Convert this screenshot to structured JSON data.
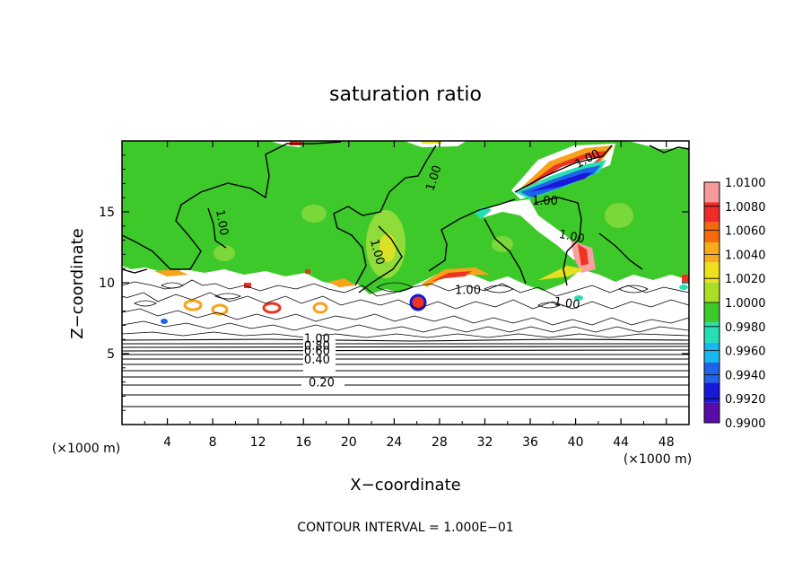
{
  "chart_data": {
    "type": "heatmap",
    "title": "saturation ratio",
    "xlabel": "X−coordinate",
    "ylabel": "Z−coordinate",
    "x_unit": "(×1000 m)",
    "y_unit": "(×1000 m)",
    "xlim": [
      0,
      50
    ],
    "ylim": [
      0,
      20
    ],
    "x_ticks": [
      4,
      8,
      12,
      16,
      20,
      24,
      28,
      32,
      36,
      40,
      44,
      48
    ],
    "y_ticks": [
      5,
      10,
      15
    ],
    "contour_interval_text": "CONTOUR INTERVAL = 1.000E−01",
    "contour_labels": [
      {
        "text": "1.00",
        "x": 8.5,
        "z": 14.2,
        "rot": 80
      },
      {
        "text": "1.00",
        "x": 27.8,
        "z": 17.3,
        "rot": -72
      },
      {
        "text": "1.00",
        "x": 22.2,
        "z": 12.1,
        "rot": 75
      },
      {
        "text": "1.00",
        "x": 41.2,
        "z": 18.5,
        "rot": -28
      },
      {
        "text": "1.00",
        "x": 37.3,
        "z": 15.5,
        "rot": 0
      },
      {
        "text": "1.00",
        "x": 39.6,
        "z": 13.0,
        "rot": 12
      },
      {
        "text": "1.00",
        "x": 30.5,
        "z": 9.2,
        "rot": 0
      },
      {
        "text": "1.00",
        "x": 39.2,
        "z": 8.3,
        "rot": 8
      },
      {
        "text": "1.00",
        "x": 17.2,
        "z": 5.8,
        "rot": 0
      },
      {
        "text": "0.80",
        "x": 17.2,
        "z": 5.3,
        "rot": 0
      },
      {
        "text": "0.60",
        "x": 17.2,
        "z": 4.9,
        "rot": 0
      },
      {
        "text": "0.40",
        "x": 17.2,
        "z": 4.3,
        "rot": 0
      },
      {
        "text": "0.20",
        "x": 17.6,
        "z": 2.7,
        "rot": 0
      }
    ],
    "colorbar": {
      "labels": [
        "1.0100",
        "1.0080",
        "1.0060",
        "1.0040",
        "1.0020",
        "1.0000",
        "0.9980",
        "0.9960",
        "0.9940",
        "0.9920",
        "0.9900"
      ],
      "colors": [
        "#f79a9a",
        "#ee2a2a",
        "#f56a0c",
        "#f9a91e",
        "#eee01a",
        "#a9de25",
        "#3ec92b",
        "#25dfb2",
        "#19b7ef",
        "#1f64e8",
        "#1818d8",
        "#5a0ca8"
      ]
    },
    "colors": {
      "background": "#ffffff",
      "field": "#3ec92b",
      "field_light": "#7ad83a",
      "yellow": "#e4e01f",
      "orange": "#f6a21a",
      "red": "#ee3322",
      "pink": "#f7a0a0",
      "cyan": "#25dfb2",
      "blue": "#1f64e8",
      "navy": "#1818d8"
    }
  }
}
